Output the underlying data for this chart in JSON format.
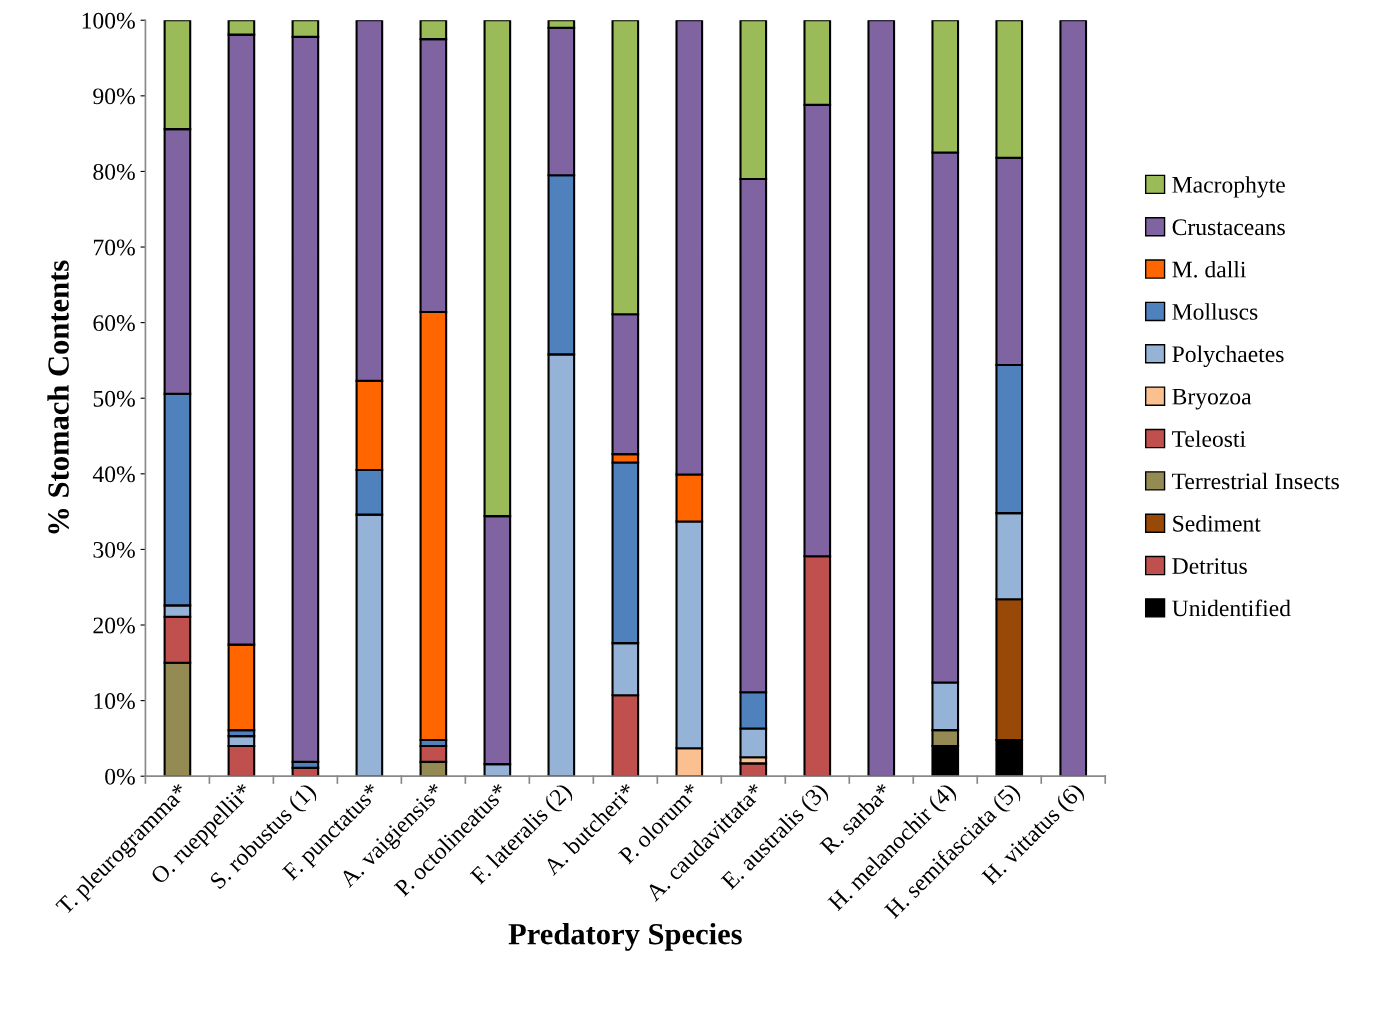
{
  "chart_data": {
    "type": "bar",
    "stacked": true,
    "xlabel": "Predatory Species",
    "ylabel": "% Stomach Contents",
    "categories": [
      "T. pleurogramma*",
      "O. rueppellii*",
      "S. robustus (1)",
      "F. punctatus*",
      "A. vaigiensis*",
      "P. octolineatus*",
      "F. lateralis (2)",
      "A. butcheri*",
      "P. olorum*",
      "A. caudavittata*",
      "E. australis (3)",
      "R. sarba*",
      "H. melanochir (4)",
      "H. semifasciata (5)",
      "H. vittatus (6)"
    ],
    "series": [
      {
        "name": "Unidentified",
        "color": "#000000",
        "values": [
          null,
          null,
          null,
          null,
          null,
          null,
          null,
          null,
          null,
          null,
          null,
          null,
          4.0,
          4.8,
          null
        ]
      },
      {
        "name": "Detritus",
        "color": "#c0504d",
        "values": [
          null,
          null,
          1.1,
          null,
          null,
          null,
          null,
          null,
          null,
          null,
          null,
          null,
          null,
          null,
          null
        ]
      },
      {
        "name": "Sediment",
        "color": "#984807",
        "values": [
          null,
          null,
          null,
          null,
          null,
          null,
          null,
          null,
          null,
          null,
          null,
          null,
          null,
          18.6,
          null
        ]
      },
      {
        "name": "Terrestrial Insects",
        "color": "#948a54",
        "values": [
          15.0,
          null,
          null,
          null,
          1.9,
          null,
          null,
          null,
          null,
          null,
          null,
          null,
          2.1,
          null,
          null
        ]
      },
      {
        "name": "Teleosti",
        "color": "#c0504d",
        "values": [
          6.1,
          4.0,
          null,
          null,
          2.1,
          null,
          null,
          10.7,
          null,
          1.7,
          29.1,
          null,
          null,
          null,
          null
        ]
      },
      {
        "name": "Bryozoa",
        "color": "#fac090",
        "values": [
          null,
          null,
          null,
          null,
          null,
          null,
          null,
          null,
          3.7,
          0.8,
          null,
          null,
          null,
          null,
          null
        ]
      },
      {
        "name": "Polychaetes",
        "color": "#95b3d7",
        "values": [
          1.5,
          1.3,
          null,
          34.6,
          null,
          1.6,
          55.8,
          6.9,
          30.0,
          3.8,
          null,
          null,
          6.3,
          11.4,
          null
        ]
      },
      {
        "name": "Molluscs",
        "color": "#4f81bd",
        "values": [
          28.0,
          0.8,
          0.8,
          5.9,
          0.8,
          null,
          23.7,
          23.9,
          null,
          4.8,
          null,
          null,
          null,
          19.6,
          null
        ]
      },
      {
        "name": "M. dalli",
        "color": "#ff6600",
        "values": [
          null,
          11.3,
          null,
          11.8,
          56.6,
          null,
          null,
          1.1,
          6.2,
          null,
          null,
          null,
          null,
          null,
          null
        ]
      },
      {
        "name": "Crustaceans",
        "color": "#8064a2",
        "values": [
          35.0,
          80.7,
          95.9,
          47.7,
          36.1,
          32.8,
          19.5,
          18.5,
          60.1,
          67.9,
          59.7,
          100,
          70.1,
          27.4,
          100
        ]
      },
      {
        "name": "Macrophyte",
        "color": "#9bbb59",
        "values": [
          14.4,
          1.9,
          2.2,
          null,
          2.5,
          65.6,
          1.0,
          38.9,
          null,
          21.0,
          11.2,
          null,
          17.5,
          18.2,
          null
        ]
      }
    ],
    "ylim": [
      0,
      100
    ],
    "yticks": [
      {
        "value": 0,
        "label": "0%"
      },
      {
        "value": 10,
        "label": "10%"
      },
      {
        "value": 20,
        "label": "20%"
      },
      {
        "value": 30,
        "label": "30%"
      },
      {
        "value": 40,
        "label": "40%"
      },
      {
        "value": 50,
        "label": "50%"
      },
      {
        "value": 60,
        "label": "60%"
      },
      {
        "value": 70,
        "label": "70%"
      },
      {
        "value": 80,
        "label": "80%"
      },
      {
        "value": 90,
        "label": "90%"
      },
      {
        "value": 100,
        "label": "100%"
      }
    ],
    "grid": false,
    "legend": "right"
  }
}
